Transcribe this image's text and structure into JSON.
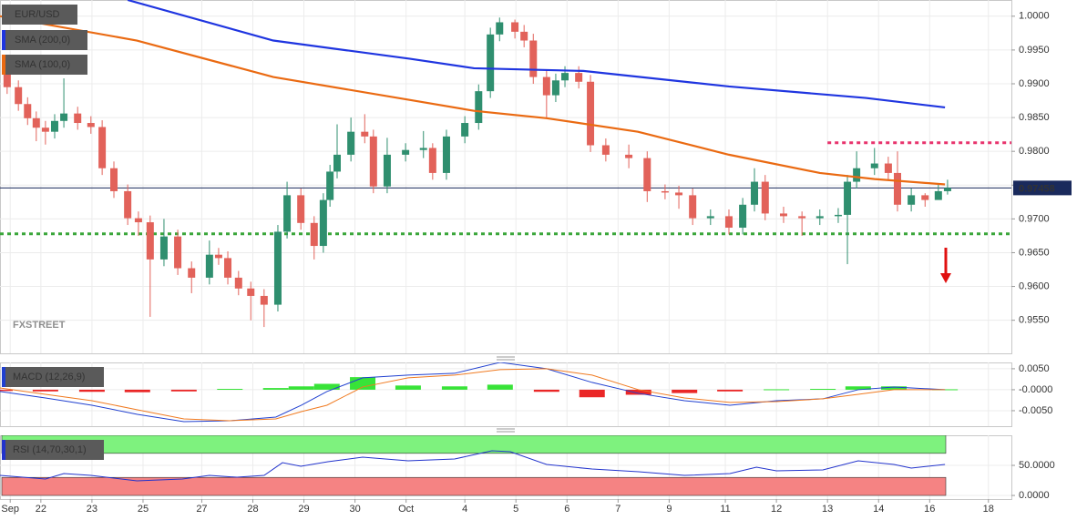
{
  "chart_data": [
    {
      "type": "candlestick",
      "symbol": "EUR/USD",
      "watermark": "FXSTREET",
      "xlim": [
        0,
        19.8
      ],
      "ylim": [
        0.9501,
        1.0024
      ],
      "grid": true,
      "up_color": "#2f8f6f",
      "down_color": "#e2625a",
      "yticks": [
        {
          "value": 1.0,
          "label": "1.0000"
        },
        {
          "value": 0.995,
          "label": "0.9950"
        },
        {
          "value": 0.99,
          "label": "0.9900"
        },
        {
          "value": 0.985,
          "label": "0.9850"
        },
        {
          "value": 0.98,
          "label": "0.9800"
        },
        {
          "value": 0.975,
          "label": "0.9750"
        },
        {
          "value": 0.97,
          "label": "0.9700"
        },
        {
          "value": 0.965,
          "label": "0.9650"
        },
        {
          "value": 0.96,
          "label": "0.9600"
        },
        {
          "value": 0.955,
          "label": "0.9550"
        }
      ],
      "candles": {
        "x": [
          0.14,
          0.36,
          0.54,
          0.71,
          0.89,
          1.07,
          1.25,
          1.52,
          1.78,
          2.0,
          2.23,
          2.5,
          2.71,
          2.94,
          3.21,
          3.48,
          3.75,
          4.1,
          4.28,
          4.46,
          4.67,
          4.91,
          5.17,
          5.44,
          5.62,
          5.89,
          6.15,
          6.33,
          6.46,
          6.6,
          6.87,
          7.14,
          7.31,
          7.58,
          7.94,
          8.29,
          8.47,
          8.74,
          9.1,
          9.37,
          9.6,
          9.78,
          10.08,
          10.26,
          10.44,
          10.7,
          10.88,
          11.06,
          11.33,
          11.56,
          11.86,
          12.31,
          12.67,
          13.02,
          13.29,
          13.56,
          13.91,
          14.27,
          14.54,
          14.77,
          14.98,
          15.34,
          15.7,
          16.05,
          16.41,
          16.59,
          16.77,
          17.12,
          17.39,
          17.57,
          17.84,
          18.11,
          18.37,
          18.55
        ],
        "open": [
          0.9915,
          0.9895,
          0.987,
          0.9849,
          0.9835,
          0.9829,
          0.9845,
          0.9856,
          0.9842,
          0.9836,
          0.9775,
          0.9741,
          0.9701,
          0.9695,
          0.964,
          0.9674,
          0.9627,
          0.9613,
          0.9647,
          0.9642,
          0.9613,
          0.9597,
          0.9586,
          0.9573,
          0.9681,
          0.9735,
          0.9694,
          0.966,
          0.9728,
          0.977,
          0.9795,
          0.9829,
          0.9822,
          0.9748,
          0.9795,
          0.9802,
          0.9805,
          0.9768,
          0.9822,
          0.9842,
          0.9889,
          0.9973,
          0.9991,
          0.9977,
          0.9964,
          0.991,
          0.9883,
          0.9905,
          0.9916,
          0.9903,
          0.9809,
          0.9795,
          0.979,
          0.9741,
          0.9739,
          0.9735,
          0.9701,
          0.9704,
          0.9687,
          0.9721,
          0.9755,
          0.9708,
          0.9704,
          0.9701,
          0.9704,
          0.9706,
          0.9755,
          0.9775,
          0.9782,
          0.9768,
          0.9721,
          0.9735,
          0.9728,
          0.9741
        ],
        "high": [
          0.9925,
          0.9905,
          0.988,
          0.9859,
          0.9845,
          0.9855,
          0.9908,
          0.9866,
          0.9852,
          0.9846,
          0.9785,
          0.9751,
          0.9711,
          0.9705,
          0.97,
          0.9684,
          0.9637,
          0.9668,
          0.9657,
          0.9652,
          0.9623,
          0.9607,
          0.9596,
          0.9691,
          0.9755,
          0.9745,
          0.9704,
          0.9738,
          0.978,
          0.984,
          0.985,
          0.9855,
          0.9832,
          0.982,
          0.9812,
          0.983,
          0.9812,
          0.9832,
          0.9852,
          0.9899,
          0.9983,
          0.9998,
          0.9995,
          0.9987,
          0.9974,
          0.992,
          0.9915,
          0.9926,
          0.9926,
          0.9913,
          0.9819,
          0.981,
          0.98,
          0.9751,
          0.9749,
          0.9745,
          0.9714,
          0.9714,
          0.9731,
          0.9775,
          0.9765,
          0.9718,
          0.9711,
          0.9714,
          0.9716,
          0.9765,
          0.98,
          0.9805,
          0.9792,
          0.98,
          0.9745,
          0.9738,
          0.9751,
          0.9758
        ],
        "low": [
          0.9885,
          0.986,
          0.9839,
          0.9815,
          0.981,
          0.9819,
          0.9835,
          0.9832,
          0.9826,
          0.9765,
          0.9731,
          0.9691,
          0.9675,
          0.9555,
          0.963,
          0.9617,
          0.959,
          0.9603,
          0.9632,
          0.9603,
          0.9587,
          0.955,
          0.954,
          0.9563,
          0.9671,
          0.9684,
          0.964,
          0.965,
          0.9718,
          0.976,
          0.9785,
          0.9812,
          0.9738,
          0.9738,
          0.9785,
          0.979,
          0.9758,
          0.9758,
          0.9812,
          0.9832,
          0.9879,
          0.9963,
          0.9967,
          0.9954,
          0.99,
          0.985,
          0.9873,
          0.9895,
          0.9893,
          0.9799,
          0.9785,
          0.9775,
          0.9725,
          0.9729,
          0.9715,
          0.9691,
          0.9691,
          0.9677,
          0.9677,
          0.9711,
          0.9698,
          0.9694,
          0.9675,
          0.9691,
          0.9694,
          0.9633,
          0.9745,
          0.9765,
          0.9758,
          0.9711,
          0.9711,
          0.9718,
          0.9731,
          0.9736
        ],
        "close": [
          0.9895,
          0.987,
          0.9849,
          0.9835,
          0.9829,
          0.9845,
          0.9856,
          0.9842,
          0.9836,
          0.9775,
          0.9741,
          0.9701,
          0.9695,
          0.964,
          0.9674,
          0.9627,
          0.9613,
          0.9647,
          0.9642,
          0.9613,
          0.9597,
          0.9586,
          0.9573,
          0.9681,
          0.9735,
          0.9694,
          0.966,
          0.9728,
          0.977,
          0.9795,
          0.9829,
          0.9822,
          0.9748,
          0.9795,
          0.9802,
          0.9805,
          0.9768,
          0.9822,
          0.9842,
          0.9889,
          0.9973,
          0.9991,
          0.9977,
          0.9964,
          0.991,
          0.9883,
          0.9905,
          0.9916,
          0.9903,
          0.9809,
          0.9795,
          0.979,
          0.9741,
          0.9739,
          0.9735,
          0.9701,
          0.9704,
          0.9687,
          0.9721,
          0.9755,
          0.9708,
          0.9704,
          0.9701,
          0.9704,
          0.9706,
          0.9755,
          0.9775,
          0.9782,
          0.9768,
          0.9721,
          0.9735,
          0.9728,
          0.9741,
          0.9746
        ]
      },
      "series": [
        {
          "name": "SMA (200,0)",
          "color": "#1f35e0",
          "x": [
            2.5,
            5.35,
            8.03,
            9.28,
            11.42,
            14.27,
            16.95,
            18.5
          ],
          "values": [
            1.0024,
            0.9964,
            0.9937,
            0.9923,
            0.9919,
            0.9896,
            0.9879,
            0.9865
          ]
        },
        {
          "name": "SMA (100,0)",
          "color": "#ea6a12",
          "x": [
            0,
            2.68,
            5.35,
            8.03,
            9.28,
            10.7,
            12.49,
            14.27,
            16.05,
            17.12,
            18.5
          ],
          "values": [
            1.0,
            0.9964,
            0.991,
            0.9876,
            0.986,
            0.9849,
            0.9829,
            0.9795,
            0.9768,
            0.9759,
            0.9751
          ]
        }
      ],
      "hlines": [
        {
          "value": 0.97458,
          "label": "0.97458",
          "color": "#1a2a5c",
          "style": "solid"
        },
        {
          "value": 0.98127,
          "color": "#e8336d",
          "style": "dotted",
          "x_start": 16.2
        },
        {
          "value": 0.96779,
          "color": "#3aa63a",
          "style": "dotted"
        }
      ]
    },
    {
      "type": "macd",
      "title": "MACD (12,26,9)",
      "xlim": [
        0,
        19.8
      ],
      "ylim": [
        -0.0087,
        0.0065
      ],
      "grid": true,
      "yticks": [
        {
          "value": 0.005,
          "label": "0.0050"
        },
        {
          "value": 0,
          "label": "-0.0000"
        },
        {
          "value": -0.005,
          "label": "-0.0050"
        }
      ],
      "x": [
        0,
        0.89,
        1.8,
        2.69,
        3.6,
        4.5,
        5.4,
        5.9,
        6.4,
        7.1,
        7.99,
        8.9,
        9.79,
        10.7,
        11.59,
        12.5,
        13.4,
        14.29,
        15.2,
        16.11,
        16.8,
        17.5,
        18.5
      ],
      "series": [
        {
          "color": "#2040d0",
          "values": [
            -0.00043,
            -0.00196,
            -0.0037,
            -0.00587,
            -0.00761,
            -0.00739,
            -0.00652,
            -0.0037,
            -0.00043,
            0.00283,
            0.00348,
            0.00391,
            0.00652,
            0.005,
            0.00174,
            -0.00087,
            -0.00261,
            -0.0037,
            -0.00261,
            -0.00217,
            0,
            0.00065,
            0
          ]
        },
        {
          "color": "#f07a20",
          "values": [
            0.00043,
            -0.00109,
            -0.00261,
            -0.00478,
            -0.00696,
            -0.00739,
            -0.00696,
            -0.00522,
            -0.0037,
            0.00065,
            0.00283,
            0.00348,
            0.00478,
            0.005,
            0.00348,
            0,
            -0.00196,
            -0.00304,
            -0.00283,
            -0.00217,
            -0.00109,
            0,
            0
          ]
        }
      ],
      "histogram": {
        "color": "#22e022",
        "negative_color": "#e81010",
        "values": [
          -0.0003,
          -0.0004,
          -0.0005,
          -0.0006,
          -0.0004,
          0.0002,
          0.0004,
          0.0008,
          0.0014,
          0.003,
          0.001,
          0.0008,
          0.0012,
          -0.0005,
          -0.0018,
          -0.0012,
          -0.0008,
          -0.0004,
          0.0001,
          0.0002,
          0.0008,
          0.0008,
          0.0001
        ]
      }
    },
    {
      "type": "rsi",
      "title": "RSI (14,70,30,1)",
      "xlim": [
        0,
        19.8
      ],
      "ylim": [
        -6,
        100
      ],
      "grid": true,
      "yticks": [
        {
          "value": 50,
          "label": "50.0000"
        },
        {
          "value": 0,
          "label": "0.0000"
        }
      ],
      "bands": [
        {
          "from": 70,
          "to": 100,
          "color": "#7ef27e"
        },
        {
          "from": 0,
          "to": 30,
          "color": "#f58383"
        }
      ],
      "x": [
        0,
        0.89,
        1.25,
        1.78,
        2.68,
        3.57,
        4.1,
        4.64,
        5.17,
        5.53,
        5.89,
        6.42,
        7.1,
        7.99,
        8.9,
        9.63,
        9.99,
        10.7,
        11.59,
        12.5,
        13.4,
        14.29,
        14.81,
        15.2,
        16.11,
        16.8,
        17.5,
        17.84,
        18.5
      ],
      "series": [
        {
          "color": "#2233cc",
          "values": [
            33.3,
            27.3,
            36.4,
            33.3,
            24.2,
            27.3,
            33.3,
            30.3,
            33.3,
            54.5,
            48.5,
            56.1,
            63.6,
            57.6,
            60.6,
            74.2,
            72.7,
            51.5,
            43.9,
            39.4,
            33.3,
            36.4,
            47.0,
            40.9,
            42.4,
            57.6,
            51.5,
            45.5,
            51.5
          ]
        }
      ],
      "xticks": [
        {
          "value": 0.2,
          "label": "Sep"
        },
        {
          "value": 0.8,
          "label": "22"
        },
        {
          "value": 1.8,
          "label": "23"
        },
        {
          "value": 2.8,
          "label": "25"
        },
        {
          "value": 3.95,
          "label": "27"
        },
        {
          "value": 4.95,
          "label": "28"
        },
        {
          "value": 5.95,
          "label": "29"
        },
        {
          "value": 6.95,
          "label": "30"
        },
        {
          "value": 7.95,
          "label": "Oct"
        },
        {
          "value": 9.1,
          "label": "4"
        },
        {
          "value": 10.1,
          "label": "5"
        },
        {
          "value": 11.1,
          "label": "6"
        },
        {
          "value": 12.1,
          "label": "7"
        },
        {
          "value": 13.1,
          "label": "9"
        },
        {
          "value": 14.2,
          "label": "11"
        },
        {
          "value": 15.2,
          "label": "12"
        },
        {
          "value": 16.2,
          "label": "13"
        },
        {
          "value": 17.2,
          "label": "14"
        },
        {
          "value": 18.2,
          "label": "16"
        },
        {
          "value": 19.35,
          "label": "18"
        }
      ]
    }
  ]
}
